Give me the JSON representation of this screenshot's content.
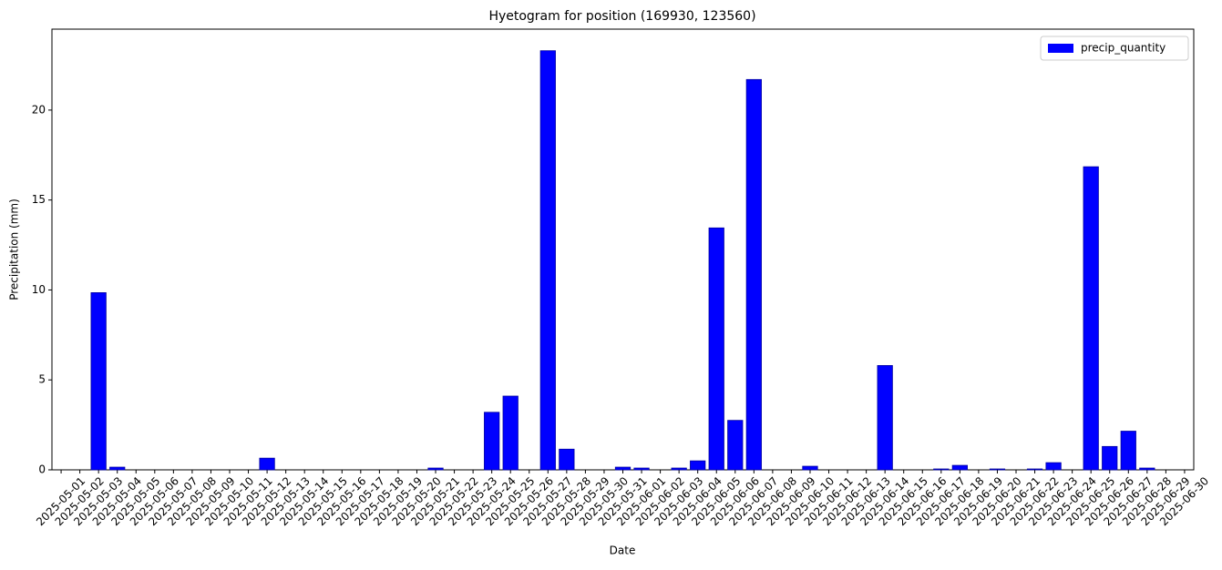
{
  "chart_data": {
    "type": "bar",
    "title": "Hyetogram for position (169930, 123560)",
    "x_label": "Date",
    "y_label": "Precipitation (mm)",
    "categories": [
      "2025-05-01",
      "2025-05-02",
      "2025-05-03",
      "2025-05-04",
      "2025-05-05",
      "2025-05-06",
      "2025-05-07",
      "2025-05-08",
      "2025-05-09",
      "2025-05-10",
      "2025-05-11",
      "2025-05-12",
      "2025-05-13",
      "2025-05-14",
      "2025-05-15",
      "2025-05-16",
      "2025-05-17",
      "2025-05-18",
      "2025-05-19",
      "2025-05-20",
      "2025-05-21",
      "2025-05-22",
      "2025-05-23",
      "2025-05-24",
      "2025-05-25",
      "2025-05-26",
      "2025-05-27",
      "2025-05-28",
      "2025-05-29",
      "2025-05-30",
      "2025-05-31",
      "2025-06-01",
      "2025-06-02",
      "2025-06-03",
      "2025-06-04",
      "2025-06-05",
      "2025-06-06",
      "2025-06-07",
      "2025-06-08",
      "2025-06-09",
      "2025-06-10",
      "2025-06-11",
      "2025-06-12",
      "2025-06-13",
      "2025-06-14",
      "2025-06-15",
      "2025-06-16",
      "2025-06-17",
      "2025-06-18",
      "2025-06-19",
      "2025-06-20",
      "2025-06-21",
      "2025-06-22",
      "2025-06-23",
      "2025-06-24",
      "2025-06-25",
      "2025-06-26",
      "2025-06-27",
      "2025-06-28",
      "2025-06-29",
      "2025-06-30"
    ],
    "series": [
      {
        "name": "precip_quantity",
        "color": "#0000ff",
        "values": [
          0,
          0,
          9.85,
          0.15,
          0,
          0,
          0,
          0,
          0,
          0,
          0,
          0.65,
          0,
          0,
          0,
          0,
          0,
          0,
          0,
          0,
          0.1,
          0,
          0,
          3.2,
          4.1,
          0,
          23.3,
          1.15,
          0,
          0,
          0.15,
          0.1,
          0,
          0.1,
          0.5,
          13.45,
          2.75,
          21.7,
          0,
          0,
          0.2,
          0,
          0,
          0,
          5.8,
          0,
          0,
          0.05,
          0.25,
          0,
          0.05,
          0,
          0.05,
          0.4,
          0,
          16.85,
          1.3,
          2.15,
          0.1,
          0,
          0
        ]
      }
    ],
    "ylim": [
      0,
      24.5
    ],
    "yticks": [
      0,
      5,
      10,
      15,
      20
    ],
    "grid": false,
    "legend": "upper right"
  }
}
